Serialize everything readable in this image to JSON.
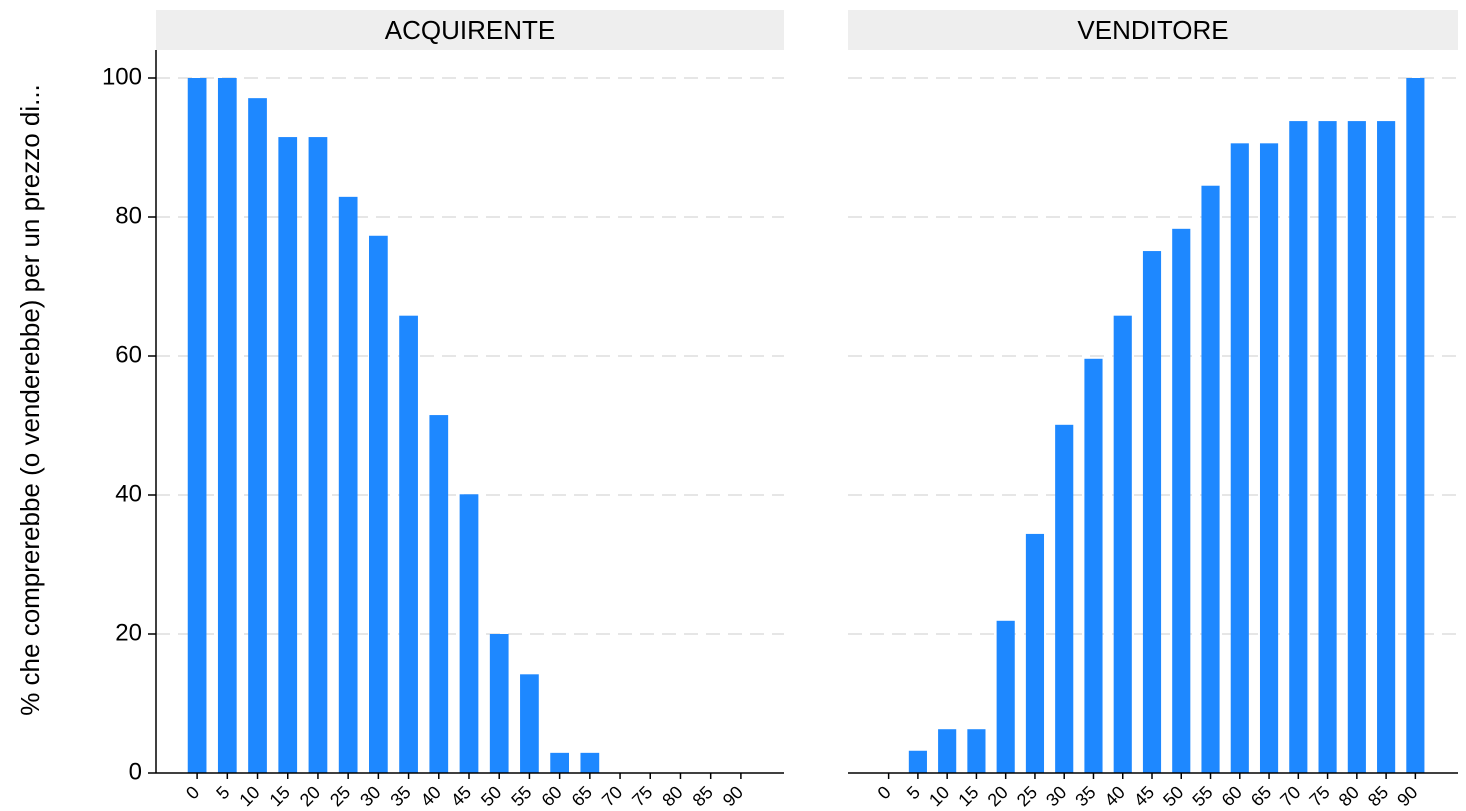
{
  "chart_data": {
    "type": "bar",
    "ylabel": "% che comprerebbe (o venderebbe) per un prezzo di...",
    "categories": [
      "0",
      "5",
      "10",
      "15",
      "20",
      "25",
      "30",
      "35",
      "40",
      "45",
      "50",
      "55",
      "60",
      "65",
      "70",
      "75",
      "80",
      "85",
      "90"
    ],
    "color": "#1e88ff",
    "ylim": [
      0,
      100
    ],
    "yticks": [
      0,
      20,
      40,
      60,
      80,
      100
    ],
    "grid": true,
    "panels": [
      {
        "title": "ACQUIRENTE",
        "values": [
          100,
          100,
          97.1,
          91.5,
          91.5,
          82.9,
          77.3,
          65.8,
          51.5,
          40.1,
          20,
          14.2,
          2.9,
          2.9,
          0,
          0,
          0,
          0,
          0
        ]
      },
      {
        "title": "VENDITORE",
        "values": [
          0,
          3.2,
          6.3,
          6.3,
          21.9,
          34.4,
          50.1,
          59.6,
          65.8,
          75.1,
          78.3,
          84.5,
          90.6,
          90.6,
          93.8,
          93.8,
          93.8,
          93.8,
          100
        ]
      }
    ]
  }
}
